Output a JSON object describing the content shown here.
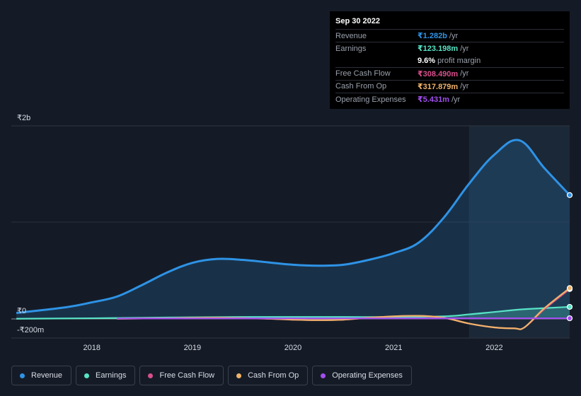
{
  "tooltip": {
    "date": "Sep 30 2022",
    "rows": [
      {
        "label": "Revenue",
        "value": "₹1.282b",
        "unit": "/yr",
        "color": "#2e93e6"
      },
      {
        "label": "Earnings",
        "value": "₹123.198m",
        "unit": "/yr",
        "color": "#58e3c6"
      },
      {
        "label": "",
        "value": "9.6%",
        "unit": "profit margin"
      },
      {
        "label": "Free Cash Flow",
        "value": "₹308.490m",
        "unit": "/yr",
        "color": "#d84f8c"
      },
      {
        "label": "Cash From Op",
        "value": "₹317.879m",
        "unit": "/yr",
        "color": "#f0b36a"
      },
      {
        "label": "Operating Expenses",
        "value": "₹5.431m",
        "unit": "/yr",
        "color": "#a24ff0"
      }
    ]
  },
  "legend": [
    {
      "label": "Revenue",
      "color": "#2e93e6"
    },
    {
      "label": "Earnings",
      "color": "#58e3c6"
    },
    {
      "label": "Free Cash Flow",
      "color": "#d84f8c"
    },
    {
      "label": "Cash From Op",
      "color": "#f0b36a"
    },
    {
      "label": "Operating Expenses",
      "color": "#a24ff0"
    }
  ],
  "chart_data": {
    "type": "area",
    "y_unit": "₹",
    "y_tick_labels": [
      "₹2b",
      "₹0",
      "-₹200m"
    ],
    "ylim": [
      -200,
      2000
    ],
    "x_tick_labels": [
      "2018",
      "2019",
      "2020",
      "2021",
      "2022"
    ],
    "xlim": [
      2017.2,
      2022.75
    ],
    "highlight_range": [
      2021.75,
      2022.75
    ],
    "grid": true,
    "legend_position": "bottom-left",
    "series": [
      {
        "name": "Revenue",
        "color": "#2e93e6",
        "fill": true,
        "x": [
          2017.25,
          2017.75,
          2018.0,
          2018.25,
          2018.5,
          2018.75,
          2019.0,
          2019.25,
          2019.5,
          2019.75,
          2020.0,
          2020.25,
          2020.5,
          2020.75,
          2021.0,
          2021.25,
          2021.5,
          2021.75,
          2022.0,
          2022.25,
          2022.5,
          2022.75
        ],
        "y": [
          60,
          120,
          170,
          230,
          350,
          480,
          580,
          620,
          610,
          585,
          560,
          550,
          560,
          610,
          680,
          790,
          1050,
          1400,
          1700,
          1850,
          1560,
          1282
        ]
      },
      {
        "name": "Earnings",
        "color": "#58e3c6",
        "fill": true,
        "x": [
          2017.25,
          2018.0,
          2018.5,
          2019.0,
          2019.5,
          2020.0,
          2020.5,
          2021.0,
          2021.5,
          2021.75,
          2022.0,
          2022.25,
          2022.5,
          2022.75
        ],
        "y": [
          0,
          5,
          10,
          15,
          18,
          18,
          18,
          18,
          25,
          45,
          70,
          95,
          110,
          123
        ]
      },
      {
        "name": "Free Cash Flow",
        "color": "#d84f8c",
        "fill": false,
        "x": [
          2018.25,
          2018.75,
          2019.25,
          2019.75,
          2020.0,
          2020.25,
          2020.5,
          2020.75,
          2021.0,
          2021.25,
          2021.5,
          2021.75,
          2022.0,
          2022.2,
          2022.3,
          2022.5,
          2022.75
        ],
        "y": [
          0,
          5,
          10,
          0,
          -10,
          -15,
          -10,
          10,
          25,
          30,
          10,
          -50,
          -90,
          -100,
          -90,
          100,
          308
        ]
      },
      {
        "name": "Cash From Op",
        "color": "#f0b36a",
        "fill": false,
        "x": [
          2018.25,
          2018.75,
          2019.25,
          2019.75,
          2020.0,
          2020.25,
          2020.5,
          2020.75,
          2021.0,
          2021.25,
          2021.5,
          2021.75,
          2022.0,
          2022.2,
          2022.3,
          2022.5,
          2022.75
        ],
        "y": [
          0,
          5,
          10,
          0,
          -10,
          -15,
          -10,
          10,
          25,
          30,
          10,
          -50,
          -90,
          -100,
          -90,
          110,
          318
        ]
      },
      {
        "name": "Operating Expenses",
        "color": "#a24ff0",
        "fill": false,
        "x": [
          2018.25,
          2019.0,
          2020.0,
          2021.0,
          2022.0,
          2022.75
        ],
        "y": [
          2,
          3,
          4,
          4,
          5,
          5
        ]
      }
    ]
  }
}
